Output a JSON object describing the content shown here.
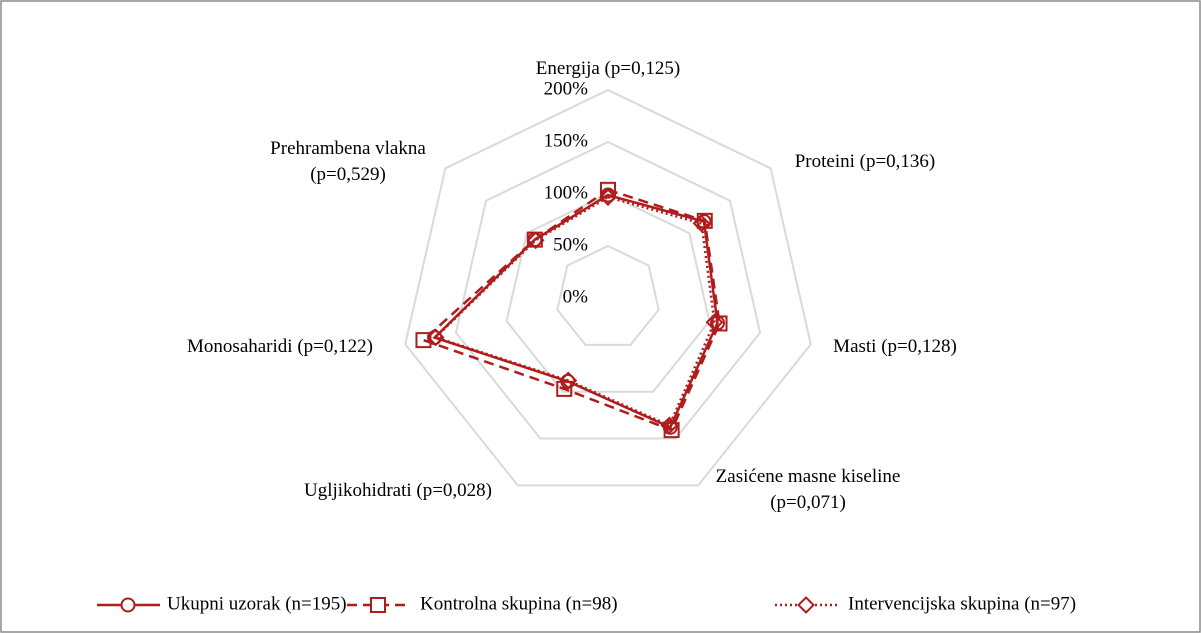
{
  "chart_data": {
    "type": "radar",
    "categories": [
      "Energija (p=0,125)",
      "Proteini (p=0,136)",
      "Masti (p=0,128)",
      "Zasićene masne kiseline\n(p=0,071)",
      "Ugljikohidrati (p=0,028)",
      "Monosaharidi (p=0,122)",
      "Prehrambena vlakna\n(p=0,529)"
    ],
    "series": [
      {
        "name": "Ukupni uzorak (n=195)",
        "color": "#b01c1c",
        "dash": "solid",
        "marker": "circle",
        "values": [
          99,
          118,
          108,
          138,
          89,
          171,
          90
        ]
      },
      {
        "name": "Kontrolna skupina (n=98)",
        "color": "#b01c1c",
        "dash": "dashed",
        "marker": "square",
        "values": [
          104,
          119,
          110,
          141,
          97,
          182,
          90
        ]
      },
      {
        "name": "Intervencijska skupina (n=97)",
        "color": "#b01c1c",
        "dash": "dotted",
        "marker": "diamond",
        "values": [
          97,
          115,
          105,
          136,
          88,
          170,
          89
        ]
      }
    ],
    "rlim": [
      0,
      200
    ],
    "rticks": [
      {
        "value": 0,
        "label": "0%"
      },
      {
        "value": 50,
        "label": "50%"
      },
      {
        "value": 100,
        "label": "100%"
      },
      {
        "value": 150,
        "label": "150%"
      },
      {
        "value": 200,
        "label": "200%"
      }
    ],
    "grid": true,
    "legend": "bottom"
  }
}
